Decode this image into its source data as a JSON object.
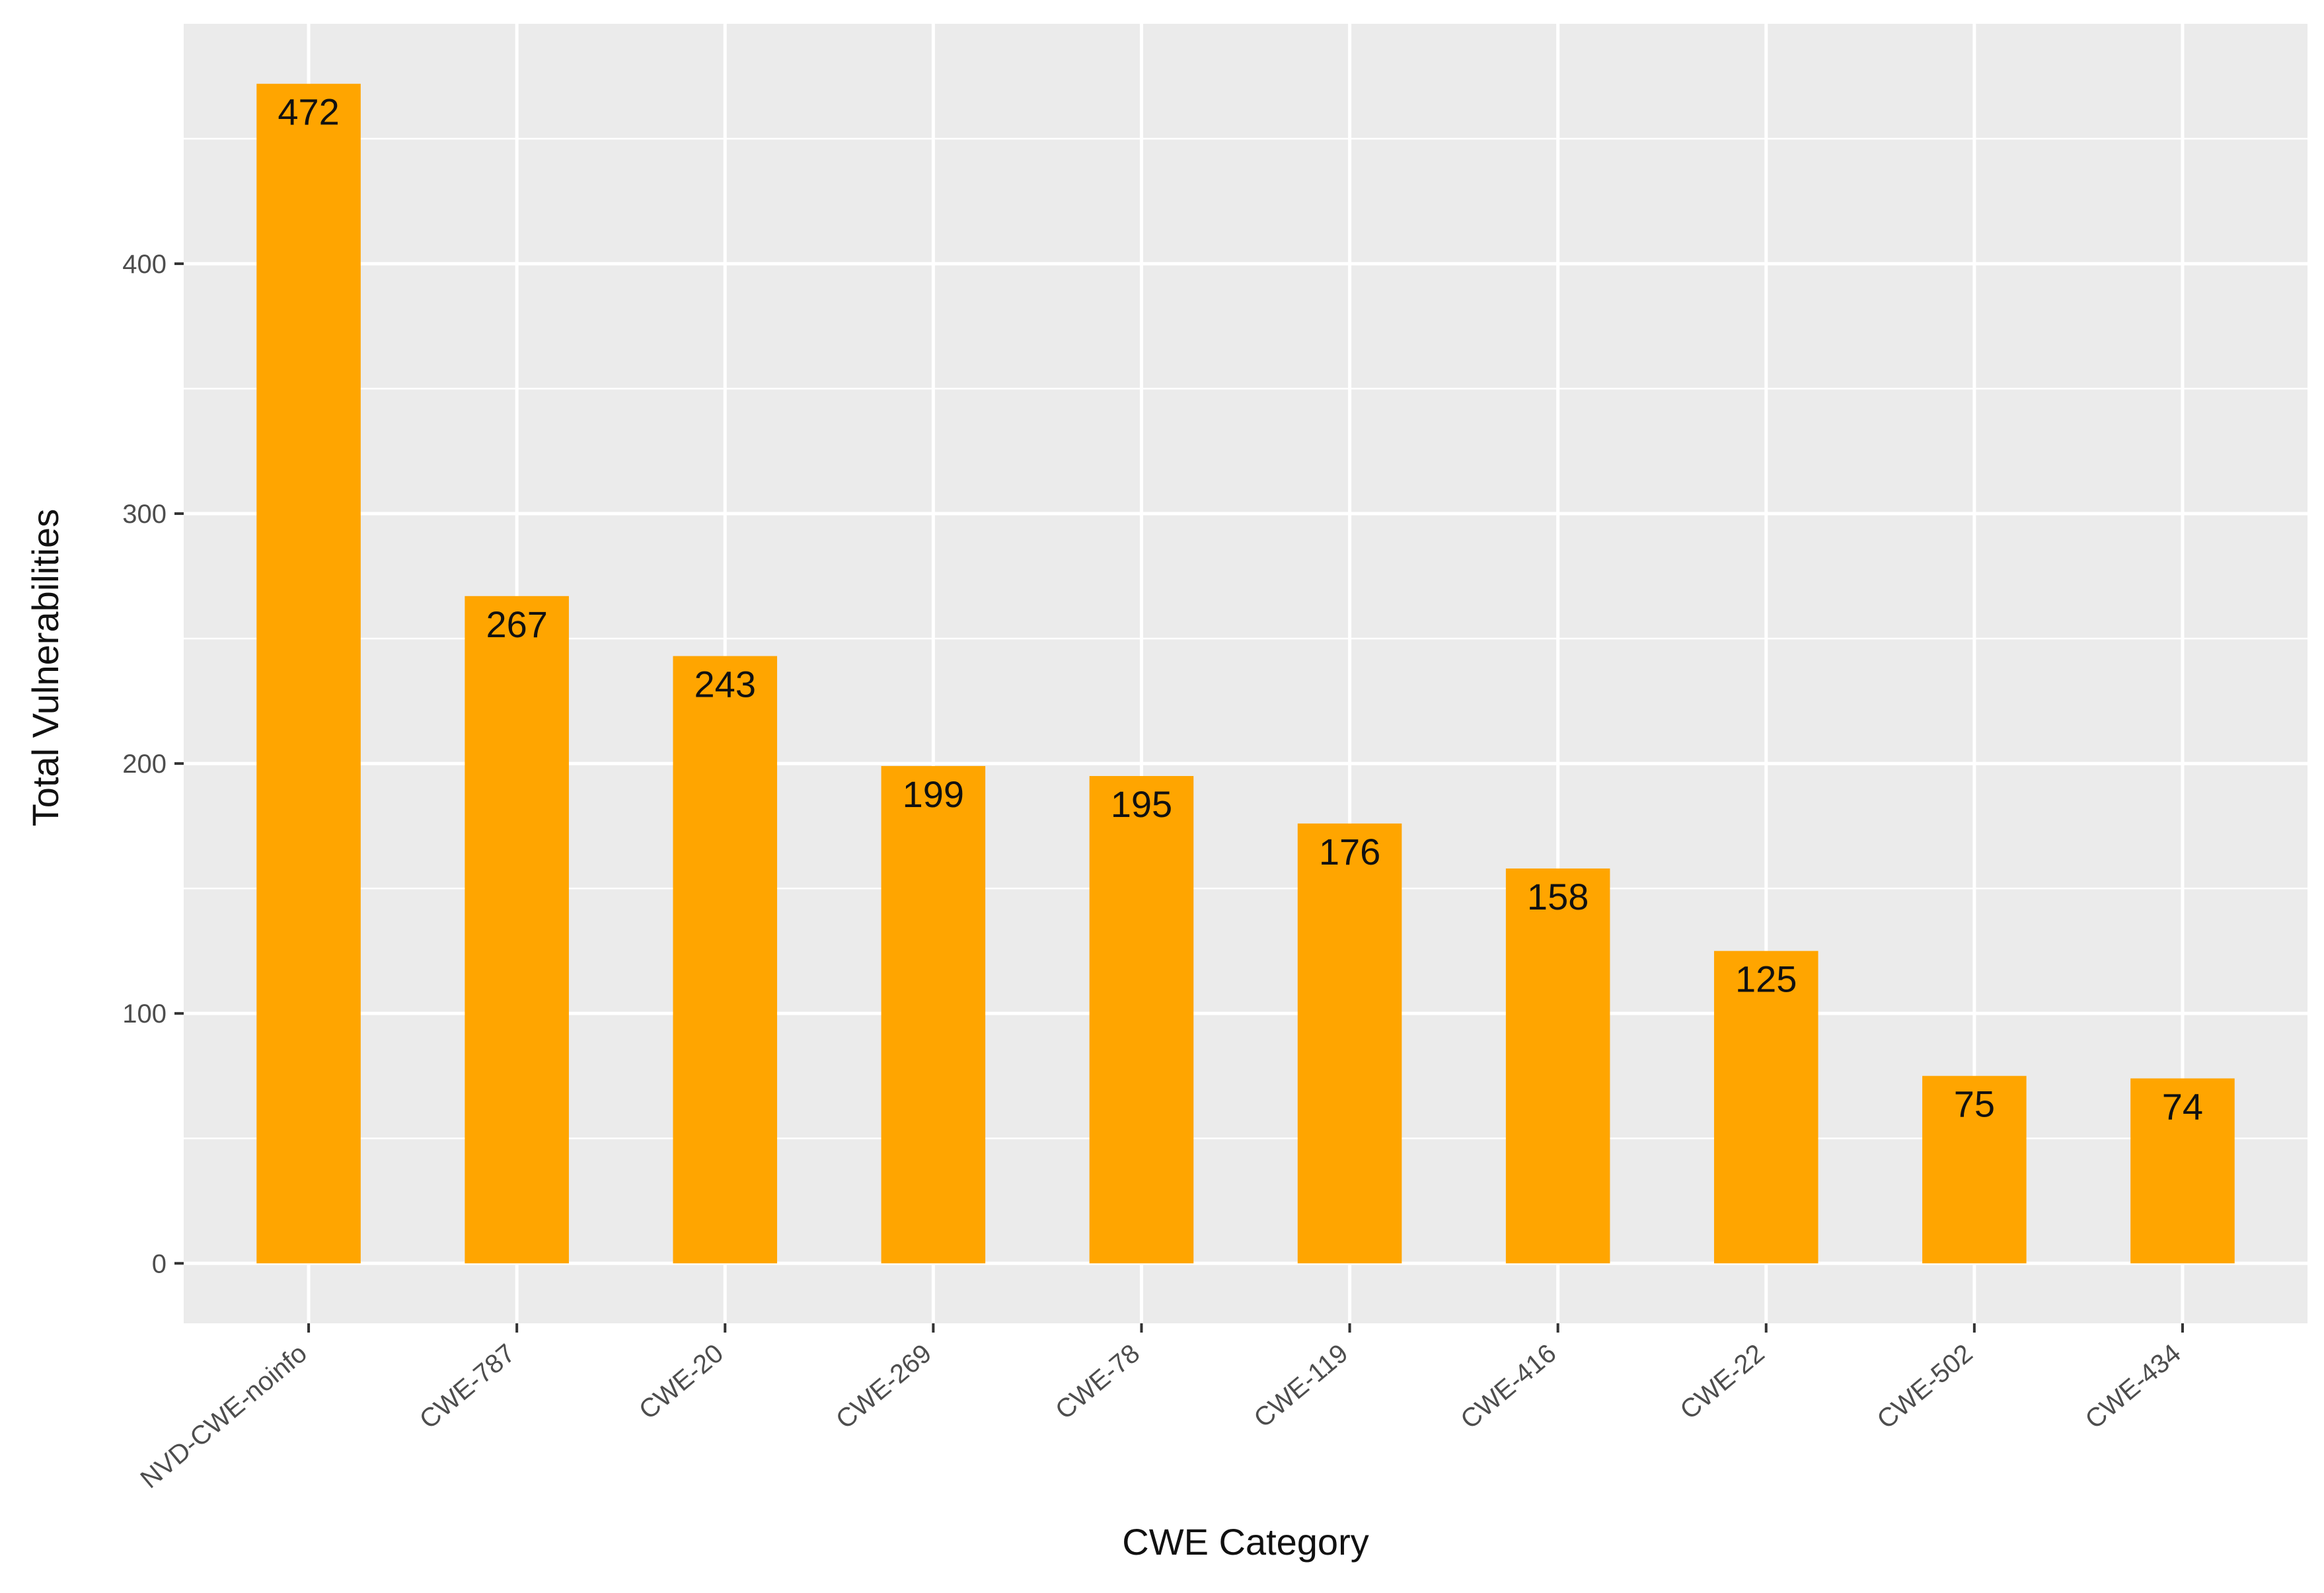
{
  "chart_data": {
    "type": "bar",
    "categories": [
      "NVD-CWE-noinfo",
      "CWE-787",
      "CWE-20",
      "CWE-269",
      "CWE-78",
      "CWE-119",
      "CWE-416",
      "CWE-22",
      "CWE-502",
      "CWE-434"
    ],
    "values": [
      472,
      267,
      243,
      199,
      195,
      176,
      158,
      125,
      75,
      74
    ],
    "data_labels": [
      "472",
      "267",
      "243",
      "199",
      "195",
      "176",
      "158",
      "125",
      "75",
      "74"
    ],
    "y_ticks": [
      0,
      100,
      200,
      300,
      400
    ],
    "y_tick_labels": [
      "0",
      "100",
      "200",
      "300",
      "400"
    ],
    "ylim": [
      -24,
      496
    ],
    "xlabel": "CWE Category",
    "ylabel": "Total Vulnerabilities",
    "title": "",
    "grid": true,
    "legend": "none",
    "colors": {
      "bar": "#FFA500",
      "panel": "#EBEBEB",
      "grid": "#FFFFFF",
      "text": "#111111",
      "tick_text": "#4D4D4D"
    }
  }
}
